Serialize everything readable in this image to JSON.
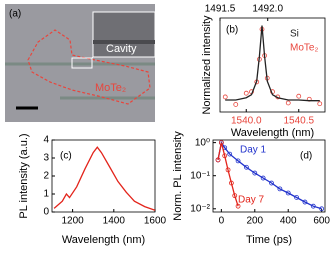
{
  "chart_data": [
    {
      "type": "image",
      "panel_label": "(a)",
      "annotations": [
        "Cavity",
        "MoTe₂"
      ]
    },
    {
      "type": "line",
      "panel_label": "(b)",
      "ylabel": "Normalized intensity",
      "xlabel": "Wavelength (nm)",
      "xlim": [
        1539.75,
        1540.75
      ],
      "xticks": [
        {
          "value": 1540,
          "label": "1540.0"
        },
        1540.5
      ],
      "x2lim": [
        1491.5,
        1492.6
      ],
      "x2ticks": [
        1491.5,
        {
          "value": 1492,
          "label": "1492.0"
        }
      ],
      "ylim": [
        -0.15,
        1.1
      ],
      "x": [
        1539.8,
        1539.9,
        1540.0,
        1540.05,
        1540.1,
        1540.125,
        1540.15,
        1540.175,
        1540.2,
        1540.25,
        1540.3,
        1540.4,
        1540.5,
        1540.6,
        1540.7
      ],
      "series": [
        {
          "name": "MoTe₂",
          "color": "#e8453c",
          "line": false,
          "markers": true,
          "values": [
            0.05,
            -0.05,
            0.1,
            0.12,
            0.25,
            0.55,
            0.95,
            0.6,
            0.3,
            0.12,
            0.05,
            -0.03,
            0.06,
            0.02,
            -0.04
          ]
        },
        {
          "name": "Si",
          "color": "#222222",
          "line": true,
          "markers": false,
          "values": [
            0.01,
            0.01,
            0.04,
            0.08,
            0.26,
            0.59,
            1,
            0.59,
            0.26,
            0.08,
            0.04,
            0.01,
            0.01,
            0,
            0
          ]
        }
      ]
    },
    {
      "type": "line",
      "panel_label": "(c)",
      "ylabel": "PL intensity (a.u.)",
      "xlabel": "Wavelength (nm)",
      "xlim": [
        1100,
        1600
      ],
      "xticks": [
        1200,
        1400,
        1600
      ],
      "ylim": [
        0,
        4
      ],
      "yticks": [
        0,
        1,
        2,
        3,
        4
      ],
      "x": [
        1110,
        1150,
        1170,
        1185,
        1220,
        1260,
        1300,
        1320,
        1340,
        1380,
        1420,
        1460,
        1500,
        1550,
        1600
      ],
      "series": [
        {
          "name": null,
          "color": "#e3241b",
          "line": true,
          "markers": false,
          "values": [
            0.2,
            0.6,
            1.0,
            0.8,
            1.4,
            2.4,
            3.3,
            3.6,
            3.3,
            2.5,
            1.7,
            1.1,
            0.6,
            0.3,
            0.1
          ]
        }
      ]
    },
    {
      "type": "line",
      "panel_label": "(d)",
      "ylabel": "Norm. PL intensity",
      "xlabel": "Time (ps)",
      "xlim": [
        -50,
        620
      ],
      "xticks": [
        0,
        200,
        400,
        600
      ],
      "log_y": true,
      "ylim": [
        0.008,
        1.2
      ],
      "yticks": [
        {
          "value": 0.01,
          "label": "10⁻²"
        },
        {
          "value": 0.1,
          "label": "10⁻¹"
        },
        {
          "value": 1,
          "label": "10⁰"
        }
      ],
      "series": [
        {
          "name": "Day 1",
          "color": "#2233cc",
          "line": true,
          "markers": true,
          "x": [
            -20,
            0,
            20,
            50,
            100,
            150,
            200,
            250,
            300,
            350,
            400,
            450,
            500,
            550,
            600
          ],
          "values": [
            0.3,
            1,
            0.7,
            0.45,
            0.28,
            0.18,
            0.12,
            0.085,
            0.06,
            0.04,
            0.03,
            0.022,
            0.016,
            0.012,
            0.01
          ]
        },
        {
          "name": "Day 7",
          "color": "#e3241b",
          "line": true,
          "markers": true,
          "x": [
            -20,
            0,
            20,
            40,
            60,
            80,
            100
          ],
          "values": [
            0.3,
            1,
            0.4,
            0.15,
            0.06,
            0.025,
            0.012
          ]
        }
      ]
    }
  ]
}
